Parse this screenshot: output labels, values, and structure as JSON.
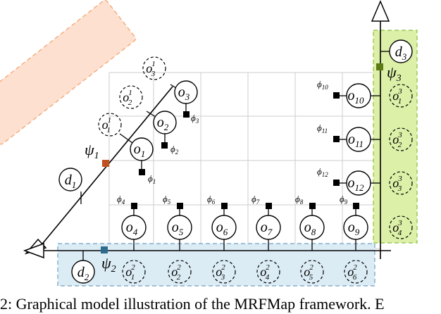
{
  "caption": "2: Graphical model illustration of the MRFMap framework. E",
  "colors": {
    "orange_region": "#fde0cf",
    "orange_border": "#f2a06a",
    "green_region": "#dcf0a8",
    "green_border": "#8cbf3a",
    "blue_region": "#dcecf5",
    "blue_border": "#6fa0c0",
    "psi1_factor": "#c0501f",
    "psi2_factor": "#2e6b8c",
    "psi3_factor": "#5c7a16",
    "factor": "#000000",
    "grid": "#cccccc"
  },
  "depth_nodes": {
    "d1": {
      "base": "d",
      "sub": "1"
    },
    "d2": {
      "base": "d",
      "sub": "2"
    },
    "d3": {
      "base": "d",
      "sub": "3"
    }
  },
  "psi_labels": {
    "psi1": {
      "base": "ψ",
      "sub": "1"
    },
    "psi2": {
      "base": "ψ",
      "sub": "2"
    },
    "psi3": {
      "base": "ψ",
      "sub": "3"
    }
  },
  "voxel_nodes": [
    {
      "id": "o1",
      "base": "o",
      "sub": "1",
      "phi": "1"
    },
    {
      "id": "o2",
      "base": "o",
      "sub": "2",
      "phi": "2"
    },
    {
      "id": "o3",
      "base": "o",
      "sub": "3",
      "phi": "3"
    },
    {
      "id": "o4",
      "base": "o",
      "sub": "4",
      "phi": "4"
    },
    {
      "id": "o5",
      "base": "o",
      "sub": "5",
      "phi": "5"
    },
    {
      "id": "o6",
      "base": "o",
      "sub": "6",
      "phi": "6"
    },
    {
      "id": "o7",
      "base": "o",
      "sub": "7",
      "phi": "7"
    },
    {
      "id": "o8",
      "base": "o",
      "sub": "8",
      "phi": "8"
    },
    {
      "id": "o9",
      "base": "o",
      "sub": "9",
      "phi": "9"
    },
    {
      "id": "o10",
      "base": "o",
      "sub": "10",
      "phi": "10"
    },
    {
      "id": "o11",
      "base": "o",
      "sub": "11",
      "phi": "11"
    },
    {
      "id": "o12",
      "base": "o",
      "sub": "12",
      "phi": "12"
    }
  ],
  "ray_nodes": {
    "ray1": [
      {
        "base": "o",
        "sup": "1",
        "sub": "1"
      },
      {
        "base": "o",
        "sup": "1",
        "sub": "2"
      },
      {
        "base": "o",
        "sup": "1",
        "sub": "3"
      }
    ],
    "ray2": [
      {
        "base": "o",
        "sup": "2",
        "sub": "1"
      },
      {
        "base": "o",
        "sup": "2",
        "sub": "2"
      },
      {
        "base": "o",
        "sup": "2",
        "sub": "3"
      },
      {
        "base": "o",
        "sup": "2",
        "sub": "4"
      },
      {
        "base": "o",
        "sup": "2",
        "sub": "5"
      },
      {
        "base": "o",
        "sup": "2",
        "sub": "6"
      }
    ],
    "ray3": [
      {
        "base": "o",
        "sup": "3",
        "sub": "1"
      },
      {
        "base": "o",
        "sup": "3",
        "sub": "2"
      },
      {
        "base": "o",
        "sup": "3",
        "sub": "3"
      },
      {
        "base": "o",
        "sup": "3",
        "sub": "4"
      }
    ]
  }
}
